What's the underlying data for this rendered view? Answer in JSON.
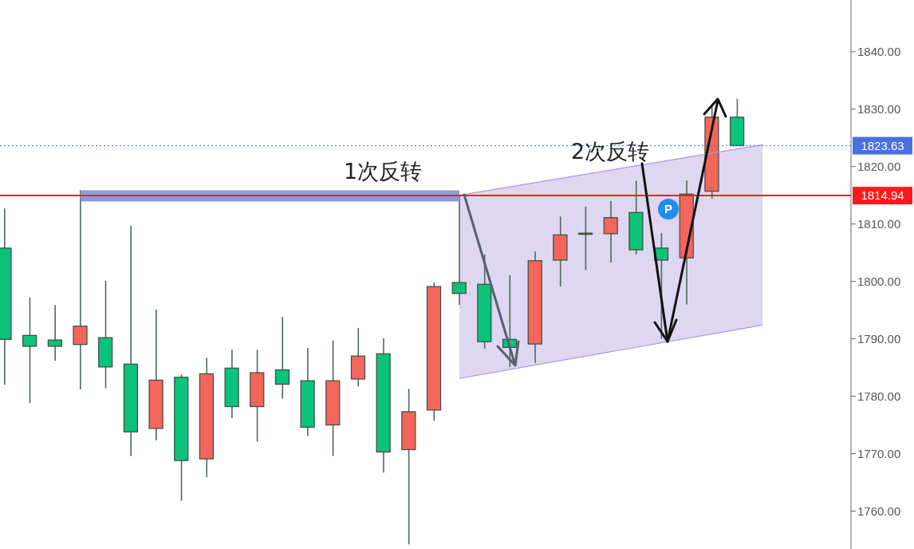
{
  "chart_data": {
    "type": "candlestick",
    "categories": [
      null,
      null,
      null,
      null,
      null,
      null,
      null,
      null,
      null,
      null,
      null,
      null,
      null,
      null,
      null,
      null,
      null,
      null,
      null,
      null,
      null,
      null,
      null,
      null,
      null,
      null,
      null,
      null,
      null,
      null,
      null,
      null,
      null,
      null
    ],
    "ohlc": [
      [
        1805.8,
        1812.7,
        1782.0,
        1789.9
      ],
      [
        1790.6,
        1797.2,
        1778.8,
        1788.7
      ],
      [
        1789.8,
        1795.9,
        1786.2,
        1788.7
      ],
      [
        1789.0,
        1815.9,
        1781.2,
        1792.2
      ],
      [
        1790.2,
        1800.1,
        1781.4,
        1785.1
      ],
      [
        1785.6,
        1809.7,
        1769.6,
        1773.8
      ],
      [
        1774.4,
        1795.1,
        1772.3,
        1782.8
      ],
      [
        1783.3,
        1783.8,
        1761.8,
        1768.8
      ],
      [
        1769.1,
        1786.7,
        1765.9,
        1783.9
      ],
      [
        1784.9,
        1788.1,
        1776.2,
        1778.2
      ],
      [
        1778.2,
        1788.1,
        1772.1,
        1784.1
      ],
      [
        1784.6,
        1793.8,
        1779.6,
        1782.1
      ],
      [
        1782.7,
        1788.4,
        1773.1,
        1774.6
      ],
      [
        1775.0,
        1789.7,
        1769.6,
        1782.7
      ],
      [
        1783.0,
        1791.9,
        1781.7,
        1787.0
      ],
      [
        1787.4,
        1790.1,
        1766.7,
        1770.3
      ],
      [
        1770.7,
        1781.3,
        1754.2,
        1777.3
      ],
      [
        1777.6,
        1799.8,
        1775.7,
        1799.1
      ],
      [
        1799.8,
        1815.0,
        1795.9,
        1797.9
      ],
      [
        1799.5,
        1804.7,
        1788.3,
        1789.5
      ],
      [
        1789.9,
        1801.1,
        1785.1,
        1788.5
      ],
      [
        1789.1,
        1805.2,
        1785.8,
        1803.6
      ],
      [
        1803.7,
        1811.3,
        1799.1,
        1808.1
      ],
      [
        1808.3,
        1813.0,
        1802.0,
        1808.3
      ],
      [
        1808.3,
        1814.0,
        1803.3,
        1811.1
      ],
      [
        1812.0,
        1817.5,
        1804.7,
        1805.5
      ],
      [
        1805.8,
        1808.4,
        1790.0,
        1803.7
      ],
      [
        1804.1,
        1817.6,
        1796.0,
        1815.2
      ],
      [
        1815.7,
        1830.5,
        1814.4,
        1828.6
      ],
      [
        1828.6,
        1831.8,
        1823.63,
        1823.63
      ],
      null,
      null,
      null,
      null
    ],
    "colors": [
      "#0bc27a",
      "#0bc27a",
      "#0bc27a",
      "#f4665c",
      "#0bc27a",
      "#0bc27a",
      "#f4665c",
      "#0bc27a",
      "#f4665c",
      "#0bc27a",
      "#f4665c",
      "#0bc27a",
      "#0bc27a",
      "#f4665c",
      "#f4665c",
      "#0bc27a",
      "#f4665c",
      "#f4665c",
      "#0bc27a",
      "#0bc27a",
      "#0bc27a",
      "#f4665c",
      "#f4665c",
      "#5b6e60",
      "#f4665c",
      "#0bc27a",
      "#0bc27a",
      "#f4665c",
      "#f4665c",
      "#0bc27a",
      null,
      null,
      null,
      null
    ],
    "series": [
      {
        "type": "line",
        "color": "#8d9cd0",
        "values": [
          null,
          null,
          null,
          1814.9,
          1814.9,
          1814.9,
          1814.9,
          1814.9,
          1814.9,
          1814.9,
          1814.9,
          1814.9,
          1814.9,
          1814.9,
          1814.9,
          1814.9,
          1814.9,
          1814.9,
          1814.9,
          null,
          null,
          null,
          null,
          null,
          null,
          null,
          null,
          null,
          null,
          null,
          null,
          null,
          null,
          null
        ]
      },
      {
        "type": "line",
        "color": "#a996dc",
        "values": [
          null,
          null,
          null,
          null,
          null,
          null,
          null,
          null,
          null,
          null,
          null,
          null,
          null,
          null,
          null,
          null,
          null,
          null,
          1815.0,
          null,
          null,
          null,
          null,
          null,
          null,
          null,
          null,
          null,
          null,
          null,
          1823.8,
          null,
          null,
          null
        ]
      },
      {
        "type": "line",
        "color": "#a996dc",
        "values": [
          null,
          null,
          null,
          null,
          null,
          null,
          null,
          null,
          null,
          null,
          null,
          null,
          null,
          null,
          null,
          null,
          null,
          null,
          1783.1,
          null,
          null,
          null,
          null,
          null,
          null,
          null,
          null,
          null,
          null,
          null,
          1792.4,
          null,
          null,
          null
        ]
      }
    ],
    "ref_lines": [
      {
        "axis": "y",
        "value": 1814.94,
        "label": "1814.94",
        "color": "#ff1a1a",
        "line_style": "solid"
      },
      {
        "axis": "y",
        "value": 1823.63,
        "label": "1823.63",
        "color": "#4a6fe0",
        "line_style": "dotted"
      }
    ],
    "annotations": [
      "1次反转",
      "2次反转",
      "P"
    ],
    "ylim": [
      1753.4,
      1849
    ],
    "yticks": [
      {
        "value": 1760,
        "label": "1760.00"
      },
      {
        "value": 1770,
        "label": "1770.00"
      },
      {
        "value": 1780,
        "label": "1780.00"
      },
      {
        "value": 1790,
        "label": "1790.00"
      },
      {
        "value": 1800,
        "label": "1800.00"
      },
      {
        "value": 1810,
        "label": "1810.00"
      },
      {
        "value": 1820,
        "label": "1820.00"
      },
      {
        "value": 1830,
        "label": "1830.00"
      },
      {
        "value": 1840,
        "label": "1840.00"
      }
    ],
    "tick_labels": "y"
  }
}
